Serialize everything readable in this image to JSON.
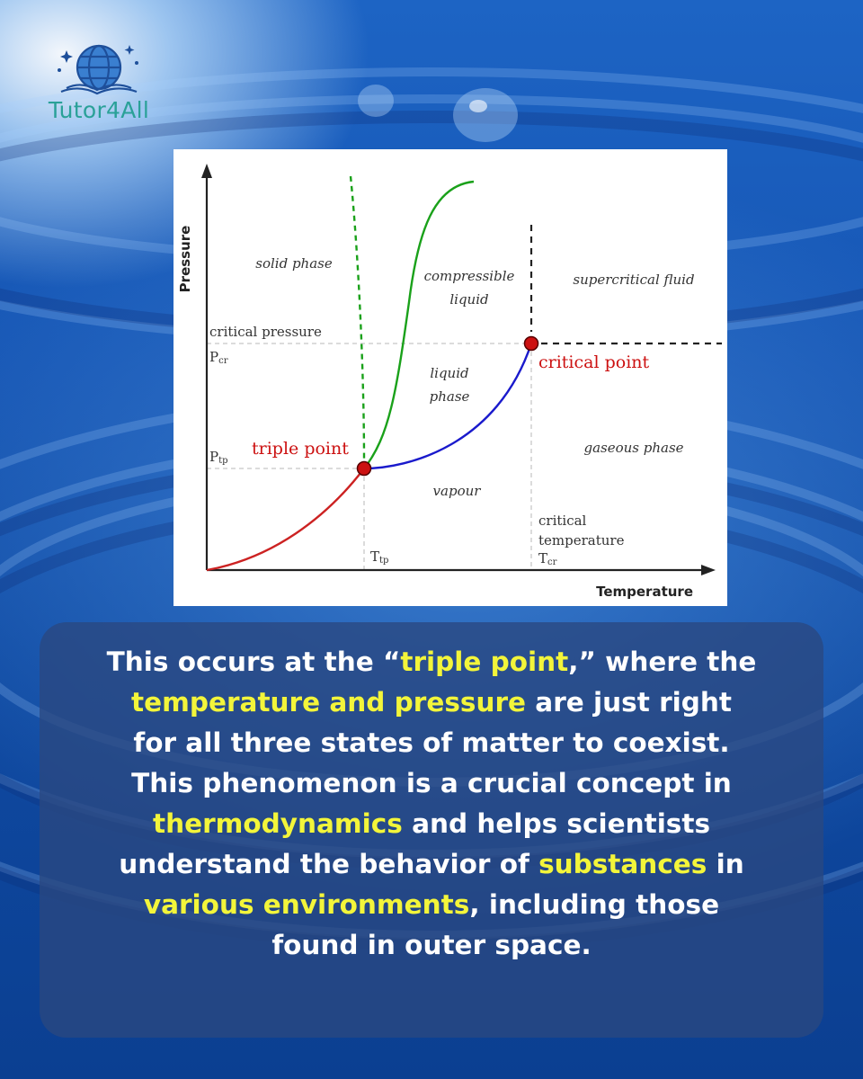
{
  "brand": {
    "name": "Tutor4All"
  },
  "colors": {
    "highlight": "#f3f53a",
    "brand_teal": "#2aa198",
    "solid_liquid_line": "#1aa11a",
    "liquid_gas_line": "#1a1acc",
    "solid_gas_line": "#cc2222",
    "points": "#cc1111"
  },
  "diagram": {
    "axis_y": "Pressure",
    "axis_x": "Temperature",
    "regions": {
      "solid": "solid phase",
      "compressible_1": "compressible",
      "compressible_2": "liquid",
      "supercritical": "supercritical fluid",
      "liquid_1": "liquid",
      "liquid_2": "phase",
      "gaseous": "gaseous phase",
      "vapour": "vapour"
    },
    "labels": {
      "critical_pressure": "critical pressure",
      "p_cr": "P",
      "p_cr_sub": "cr",
      "p_tp": "P",
      "p_tp_sub": "tp",
      "t_tp": "T",
      "t_tp_sub": "tp",
      "t_cr": "T",
      "t_cr_sub": "cr",
      "critical_temp_1": "critical",
      "critical_temp_2": "temperature",
      "triple_point": "triple point",
      "critical_point": "critical point"
    }
  },
  "panel": {
    "l1a": "This occurs at the “",
    "l1b": "triple point",
    "l1c": ",” where the",
    "l2a": "temperature and pressure",
    "l2b": " are just right",
    "l3": "for all three states of matter to coexist.",
    "l4": "This phenomenon is a crucial concept in",
    "l5a": "thermodynamics",
    "l5b": " and helps scientists",
    "l6a": "understand the behavior of ",
    "l6b": "substances",
    "l6c": " in",
    "l7a": "various environments",
    "l7b": ", including those",
    "l8": "found in outer space."
  }
}
